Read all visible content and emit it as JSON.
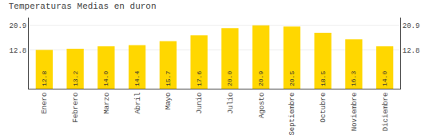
{
  "chart_data": {
    "type": "bar",
    "title": "Temperaturas Medias en duron",
    "categories": [
      "Enero",
      "Febrero",
      "Marzo",
      "Abril",
      "Mayo",
      "Junio",
      "Julio",
      "Agosto",
      "Septiembre",
      "Octubre",
      "Noviembre",
      "Diciembre"
    ],
    "values": [
      12.8,
      13.2,
      14.0,
      14.4,
      15.7,
      17.6,
      20.0,
      20.9,
      20.5,
      18.5,
      16.3,
      14.0
    ],
    "value_labels": [
      "12.8",
      "13.2",
      "14.0",
      "14.4",
      "15.7",
      "17.6",
      "20.0",
      "20.9",
      "20.5",
      "18.5",
      "16.3",
      "14.0"
    ],
    "data_labels": true,
    "color": "#FFD700",
    "ylim": [
      0,
      23.5
    ],
    "yticks": [
      12.8,
      20.9
    ],
    "y2lim": [
      0,
      23.5
    ],
    "y2ticks": [
      12.8,
      20.9
    ],
    "grid": true
  }
}
